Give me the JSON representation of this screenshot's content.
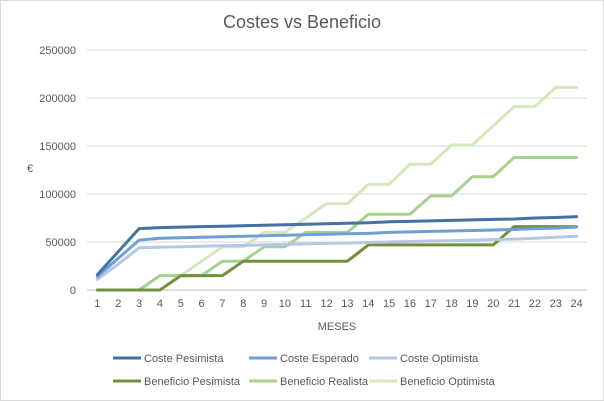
{
  "chart_data": {
    "type": "line",
    "title": "Costes vs Beneficio",
    "xlabel": "MESES",
    "ylabel": "€",
    "categories": [
      "1",
      "2",
      "3",
      "4",
      "5",
      "6",
      "7",
      "8",
      "9",
      "10",
      "11",
      "12",
      "13",
      "14",
      "15",
      "16",
      "17",
      "18",
      "19",
      "20",
      "21",
      "22",
      "23",
      "24"
    ],
    "ylim": [
      0,
      250000
    ],
    "yticks": [
      0,
      50000,
      100000,
      150000,
      200000,
      250000
    ],
    "ytick_labels": [
      "0",
      "50000",
      "100000",
      "150000",
      "200000",
      "250000"
    ],
    "grid": "horizontal",
    "legend_position": "bottom",
    "series": [
      {
        "name": "Coste Pesimista",
        "color": "#4472a4",
        "values": [
          16000,
          40000,
          64000,
          65000,
          65500,
          66000,
          66500,
          67000,
          67500,
          68000,
          68500,
          69000,
          69500,
          70000,
          71000,
          71500,
          72000,
          72500,
          73000,
          73500,
          74000,
          75000,
          75500,
          76500
        ]
      },
      {
        "name": "Coste Esperado",
        "color": "#6f9fd6",
        "values": [
          14000,
          33000,
          52000,
          54000,
          54500,
          55000,
          55500,
          56000,
          56500,
          57000,
          57500,
          58000,
          58500,
          59000,
          60000,
          60500,
          61000,
          61500,
          62000,
          62500,
          63000,
          64000,
          64500,
          65500
        ]
      },
      {
        "name": "Coste Optimista",
        "color": "#b4c7e7",
        "values": [
          11000,
          27000,
          44000,
          44500,
          45000,
          45500,
          46000,
          46500,
          47000,
          47500,
          48000,
          48500,
          49000,
          49500,
          50000,
          50500,
          51000,
          51500,
          52000,
          52500,
          53000,
          54000,
          55000,
          56000
        ]
      },
      {
        "name": "Beneficio Pesimista",
        "color": "#70903c",
        "values": [
          0,
          0,
          0,
          0,
          15000,
          15000,
          15000,
          30000,
          30000,
          30000,
          30000,
          30000,
          30000,
          47000,
          47000,
          47000,
          47000,
          47000,
          47000,
          47000,
          66000,
          66000,
          66000,
          66000
        ]
      },
      {
        "name": "Beneficio Realista",
        "color": "#a9d18e",
        "values": [
          0,
          0,
          0,
          15000,
          15000,
          15000,
          30000,
          30000,
          45000,
          45000,
          60000,
          60000,
          60000,
          79000,
          79000,
          79000,
          98000,
          98000,
          118000,
          118000,
          138000,
          138000,
          138000,
          138000
        ]
      },
      {
        "name": "Beneficio Optimista",
        "color": "#d5e8bc",
        "values": [
          0,
          0,
          0,
          15000,
          15000,
          30000,
          45000,
          45000,
          60000,
          60000,
          75000,
          90000,
          90000,
          110000,
          110000,
          131000,
          131000,
          151000,
          151000,
          171000,
          191000,
          191000,
          211000,
          211000
        ]
      }
    ]
  }
}
